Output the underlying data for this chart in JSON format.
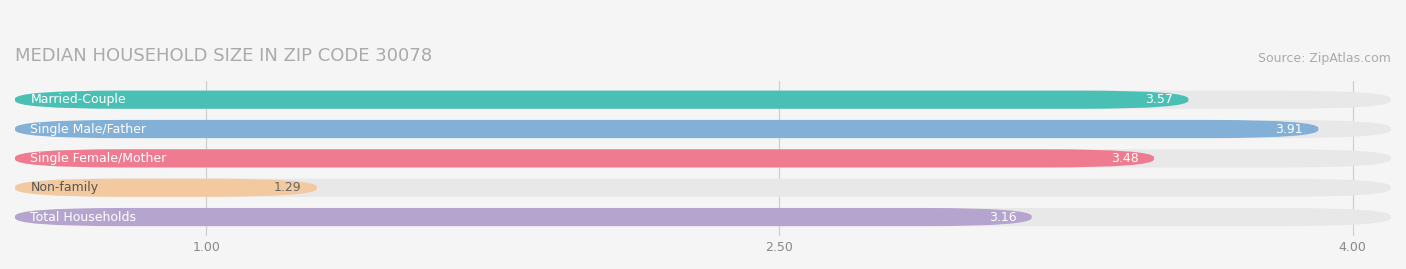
{
  "title": "MEDIAN HOUSEHOLD SIZE IN ZIP CODE 30078",
  "source": "Source: ZipAtlas.com",
  "categories": [
    "Married-Couple",
    "Single Male/Father",
    "Single Female/Mother",
    "Non-family",
    "Total Households"
  ],
  "values": [
    3.57,
    3.91,
    3.48,
    1.29,
    3.16
  ],
  "bar_colors": [
    "#3dbdb1",
    "#7aacd6",
    "#f0728a",
    "#f5c89a",
    "#b09fcc"
  ],
  "xlim": [
    0.5,
    4.1
  ],
  "xticks": [
    1.0,
    2.5,
    4.0
  ],
  "xtick_labels": [
    "1.00",
    "2.50",
    "4.00"
  ],
  "title_fontsize": 13,
  "source_fontsize": 9,
  "label_fontsize": 9,
  "value_fontsize": 9,
  "background_color": "#f5f5f5",
  "bar_bg_color": "#e8e8e8"
}
